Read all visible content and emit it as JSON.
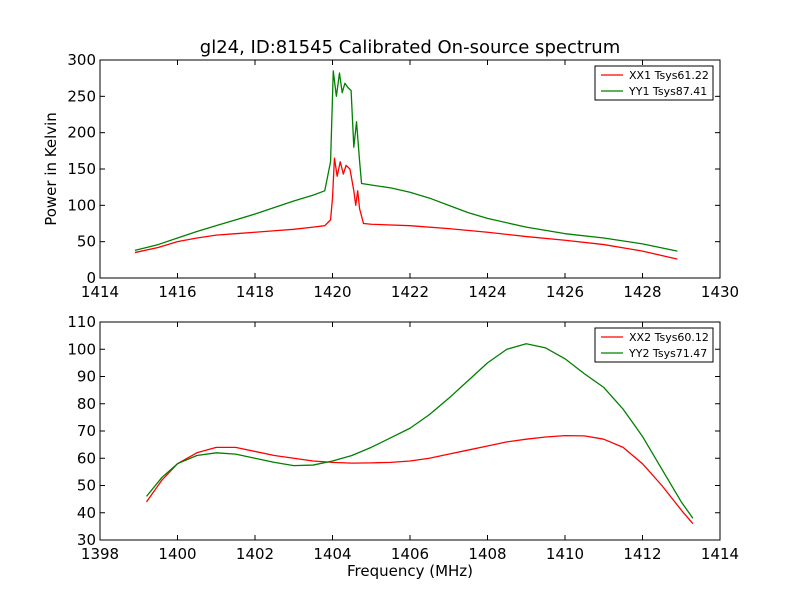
{
  "chart_data": [
    {
      "type": "line",
      "title": "gl24, ID:81545 Calibrated On-source spectrum",
      "xlabel": "",
      "ylabel": "Power in Kelvin",
      "xlim": [
        1414,
        1430
      ],
      "ylim": [
        0,
        300
      ],
      "xticks": [
        1414,
        1416,
        1418,
        1420,
        1422,
        1424,
        1426,
        1428,
        1430
      ],
      "yticks": [
        0,
        50,
        100,
        150,
        200,
        250,
        300
      ],
      "grid": false,
      "legend_position": "top-right",
      "series": [
        {
          "name": "XX1 Tsys61.22",
          "color": "#ff0000",
          "points": [
            [
              1414.9,
              35
            ],
            [
              1415.5,
              42
            ],
            [
              1416.0,
              50
            ],
            [
              1416.5,
              55
            ],
            [
              1417.0,
              59
            ],
            [
              1417.5,
              61
            ],
            [
              1418.0,
              63
            ],
            [
              1418.5,
              65
            ],
            [
              1419.0,
              67
            ],
            [
              1419.5,
              70
            ],
            [
              1419.8,
              72
            ],
            [
              1419.95,
              80
            ],
            [
              1420.0,
              110
            ],
            [
              1420.05,
              165
            ],
            [
              1420.12,
              140
            ],
            [
              1420.2,
              160
            ],
            [
              1420.28,
              143
            ],
            [
              1420.35,
              155
            ],
            [
              1420.45,
              150
            ],
            [
              1420.55,
              120
            ],
            [
              1420.6,
              100
            ],
            [
              1420.65,
              120
            ],
            [
              1420.7,
              95
            ],
            [
              1420.8,
              75
            ],
            [
              1421.0,
              74
            ],
            [
              1422.0,
              72
            ],
            [
              1423.0,
              68
            ],
            [
              1424.0,
              63
            ],
            [
              1425.0,
              57
            ],
            [
              1426.0,
              52
            ],
            [
              1427.0,
              46
            ],
            [
              1428.0,
              37
            ],
            [
              1428.9,
              26
            ]
          ]
        },
        {
          "name": "YY1 Tsys87.41",
          "color": "#008000",
          "points": [
            [
              1414.9,
              38
            ],
            [
              1415.5,
              46
            ],
            [
              1416.0,
              55
            ],
            [
              1416.5,
              64
            ],
            [
              1417.0,
              72
            ],
            [
              1417.5,
              80
            ],
            [
              1418.0,
              88
            ],
            [
              1418.5,
              97
            ],
            [
              1419.0,
              106
            ],
            [
              1419.5,
              114
            ],
            [
              1419.8,
              120
            ],
            [
              1419.95,
              160
            ],
            [
              1420.02,
              285
            ],
            [
              1420.1,
              250
            ],
            [
              1420.18,
              282
            ],
            [
              1420.25,
              255
            ],
            [
              1420.32,
              268
            ],
            [
              1420.4,
              262
            ],
            [
              1420.48,
              258
            ],
            [
              1420.55,
              180
            ],
            [
              1420.62,
              215
            ],
            [
              1420.7,
              160
            ],
            [
              1420.75,
              130
            ],
            [
              1421.0,
              128
            ],
            [
              1421.5,
              124
            ],
            [
              1422.0,
              118
            ],
            [
              1422.5,
              110
            ],
            [
              1423.0,
              100
            ],
            [
              1423.5,
              90
            ],
            [
              1424.0,
              82
            ],
            [
              1425.0,
              70
            ],
            [
              1426.0,
              61
            ],
            [
              1427.0,
              55
            ],
            [
              1428.0,
              47
            ],
            [
              1428.9,
              37
            ]
          ]
        }
      ]
    },
    {
      "type": "line",
      "title": "",
      "xlabel": "Frequency (MHz)",
      "ylabel": "",
      "xlim": [
        1398,
        1414
      ],
      "ylim": [
        30,
        110
      ],
      "xticks": [
        1398,
        1400,
        1402,
        1404,
        1406,
        1408,
        1410,
        1412,
        1414
      ],
      "yticks": [
        30,
        40,
        50,
        60,
        70,
        80,
        90,
        100,
        110
      ],
      "grid": false,
      "legend_position": "top-right",
      "series": [
        {
          "name": "XX2 Tsys60.12",
          "color": "#ff0000",
          "points": [
            [
              1399.2,
              44
            ],
            [
              1399.6,
              52
            ],
            [
              1400.0,
              58
            ],
            [
              1400.5,
              62
            ],
            [
              1401.0,
              64
            ],
            [
              1401.5,
              64
            ],
            [
              1402.0,
              62.5
            ],
            [
              1402.5,
              61
            ],
            [
              1403.0,
              60
            ],
            [
              1403.5,
              59
            ],
            [
              1404.0,
              58.5
            ],
            [
              1404.5,
              58.2
            ],
            [
              1405.0,
              58.3
            ],
            [
              1405.5,
              58.5
            ],
            [
              1406.0,
              59
            ],
            [
              1406.5,
              60
            ],
            [
              1407.0,
              61.5
            ],
            [
              1407.5,
              63
            ],
            [
              1408.0,
              64.5
            ],
            [
              1408.5,
              66
            ],
            [
              1409.0,
              67
            ],
            [
              1409.5,
              67.8
            ],
            [
              1410.0,
              68.3
            ],
            [
              1410.5,
              68.2
            ],
            [
              1411.0,
              67
            ],
            [
              1411.5,
              64
            ],
            [
              1412.0,
              58
            ],
            [
              1412.5,
              50
            ],
            [
              1413.0,
              41
            ],
            [
              1413.3,
              36
            ]
          ]
        },
        {
          "name": "YY2 Tsys71.47",
          "color": "#008000",
          "points": [
            [
              1399.2,
              46
            ],
            [
              1399.6,
              53
            ],
            [
              1400.0,
              58
            ],
            [
              1400.5,
              61
            ],
            [
              1401.0,
              62
            ],
            [
              1401.5,
              61.5
            ],
            [
              1402.0,
              60
            ],
            [
              1402.5,
              58.5
            ],
            [
              1403.0,
              57.3
            ],
            [
              1403.5,
              57.5
            ],
            [
              1404.0,
              59
            ],
            [
              1404.5,
              61
            ],
            [
              1405.0,
              64
            ],
            [
              1405.5,
              67.5
            ],
            [
              1406.0,
              71
            ],
            [
              1406.5,
              76
            ],
            [
              1407.0,
              82
            ],
            [
              1407.5,
              88.5
            ],
            [
              1408.0,
              95
            ],
            [
              1408.5,
              100
            ],
            [
              1409.0,
              102
            ],
            [
              1409.5,
              100.5
            ],
            [
              1410.0,
              96.5
            ],
            [
              1410.5,
              91
            ],
            [
              1411.0,
              86
            ],
            [
              1411.5,
              78
            ],
            [
              1412.0,
              68
            ],
            [
              1412.5,
              56
            ],
            [
              1413.0,
              44
            ],
            [
              1413.3,
              38
            ]
          ]
        }
      ]
    }
  ]
}
